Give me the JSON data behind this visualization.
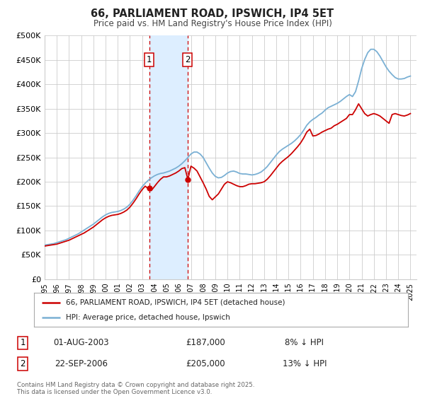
{
  "title": "66, PARLIAMENT ROAD, IPSWICH, IP4 5ET",
  "subtitle": "Price paid vs. HM Land Registry's House Price Index (HPI)",
  "ylim": [
    0,
    500000
  ],
  "yticks": [
    0,
    50000,
    100000,
    150000,
    200000,
    250000,
    300000,
    350000,
    400000,
    450000,
    500000
  ],
  "ytick_labels": [
    "£0",
    "£50K",
    "£100K",
    "£150K",
    "£200K",
    "£250K",
    "£300K",
    "£350K",
    "£400K",
    "£450K",
    "£500K"
  ],
  "sale1_date": 2003.58,
  "sale1_price": 187000,
  "sale1_label": "1",
  "sale2_date": 2006.72,
  "sale2_price": 205000,
  "sale2_label": "2",
  "line_color_red": "#cc0000",
  "line_color_blue": "#7ab0d4",
  "shading_color": "#ddeeff",
  "grid_color": "#cccccc",
  "background_color": "#ffffff",
  "legend_label_red": "66, PARLIAMENT ROAD, IPSWICH, IP4 5ET (detached house)",
  "legend_label_blue": "HPI: Average price, detached house, Ipswich",
  "footnote": "Contains HM Land Registry data © Crown copyright and database right 2025.\nThis data is licensed under the Open Government Licence v3.0.",
  "hpi_x": [
    1995.0,
    1995.25,
    1995.5,
    1995.75,
    1996.0,
    1996.25,
    1996.5,
    1996.75,
    1997.0,
    1997.25,
    1997.5,
    1997.75,
    1998.0,
    1998.25,
    1998.5,
    1998.75,
    1999.0,
    1999.25,
    1999.5,
    1999.75,
    2000.0,
    2000.25,
    2000.5,
    2000.75,
    2001.0,
    2001.25,
    2001.5,
    2001.75,
    2002.0,
    2002.25,
    2002.5,
    2002.75,
    2003.0,
    2003.25,
    2003.5,
    2003.75,
    2004.0,
    2004.25,
    2004.5,
    2004.75,
    2005.0,
    2005.25,
    2005.5,
    2005.75,
    2006.0,
    2006.25,
    2006.5,
    2006.75,
    2007.0,
    2007.25,
    2007.5,
    2007.75,
    2008.0,
    2008.25,
    2008.5,
    2008.75,
    2009.0,
    2009.25,
    2009.5,
    2009.75,
    2010.0,
    2010.25,
    2010.5,
    2010.75,
    2011.0,
    2011.25,
    2011.5,
    2011.75,
    2012.0,
    2012.25,
    2012.5,
    2012.75,
    2013.0,
    2013.25,
    2013.5,
    2013.75,
    2014.0,
    2014.25,
    2014.5,
    2014.75,
    2015.0,
    2015.25,
    2015.5,
    2015.75,
    2016.0,
    2016.25,
    2016.5,
    2016.75,
    2017.0,
    2017.25,
    2017.5,
    2017.75,
    2018.0,
    2018.25,
    2018.5,
    2018.75,
    2019.0,
    2019.25,
    2019.5,
    2019.75,
    2020.0,
    2020.25,
    2020.5,
    2020.75,
    2021.0,
    2021.25,
    2021.5,
    2021.75,
    2022.0,
    2022.25,
    2022.5,
    2022.75,
    2023.0,
    2023.25,
    2023.5,
    2023.75,
    2024.0,
    2024.25,
    2024.5,
    2024.75,
    2025.0
  ],
  "hpi_y": [
    70000,
    71000,
    72000,
    73000,
    75000,
    77000,
    79000,
    81000,
    84000,
    87000,
    90000,
    93000,
    97000,
    101000,
    105000,
    109000,
    113000,
    118000,
    123000,
    128000,
    132000,
    135000,
    137000,
    138000,
    139000,
    141000,
    144000,
    148000,
    154000,
    162000,
    171000,
    181000,
    190000,
    197000,
    203000,
    208000,
    212000,
    215000,
    217000,
    218000,
    220000,
    222000,
    225000,
    228000,
    232000,
    237000,
    243000,
    250000,
    257000,
    261000,
    261000,
    257000,
    250000,
    239000,
    228000,
    218000,
    211000,
    208000,
    209000,
    213000,
    218000,
    221000,
    222000,
    220000,
    217000,
    216000,
    216000,
    215000,
    214000,
    215000,
    217000,
    220000,
    225000,
    231000,
    239000,
    247000,
    255000,
    262000,
    267000,
    271000,
    275000,
    279000,
    284000,
    290000,
    297000,
    306000,
    316000,
    323000,
    328000,
    332000,
    337000,
    341000,
    347000,
    352000,
    355000,
    358000,
    361000,
    365000,
    370000,
    375000,
    379000,
    375000,
    385000,
    407000,
    432000,
    451000,
    465000,
    472000,
    472000,
    467000,
    458000,
    447000,
    436000,
    427000,
    420000,
    414000,
    411000,
    411000,
    412000,
    415000,
    417000
  ],
  "red_x": [
    1995.0,
    1995.25,
    1995.5,
    1995.75,
    1996.0,
    1996.25,
    1996.5,
    1996.75,
    1997.0,
    1997.25,
    1997.5,
    1997.75,
    1998.0,
    1998.25,
    1998.5,
    1998.75,
    1999.0,
    1999.25,
    1999.5,
    1999.75,
    2000.0,
    2000.25,
    2000.5,
    2000.75,
    2001.0,
    2001.25,
    2001.5,
    2001.75,
    2002.0,
    2002.25,
    2002.5,
    2002.75,
    2003.0,
    2003.25,
    2003.5,
    2003.75,
    2004.0,
    2004.25,
    2004.5,
    2004.75,
    2005.0,
    2005.25,
    2005.5,
    2005.75,
    2006.0,
    2006.25,
    2006.5,
    2006.75,
    2007.0,
    2007.25,
    2007.5,
    2007.75,
    2008.0,
    2008.25,
    2008.5,
    2008.75,
    2009.0,
    2009.25,
    2009.5,
    2009.75,
    2010.0,
    2010.25,
    2010.5,
    2010.75,
    2011.0,
    2011.25,
    2011.5,
    2011.75,
    2012.0,
    2012.25,
    2012.5,
    2012.75,
    2013.0,
    2013.25,
    2013.5,
    2013.75,
    2014.0,
    2014.25,
    2014.5,
    2014.75,
    2015.0,
    2015.25,
    2015.5,
    2015.75,
    2016.0,
    2016.25,
    2016.5,
    2016.75,
    2017.0,
    2017.25,
    2017.5,
    2017.75,
    2018.0,
    2018.25,
    2018.5,
    2018.75,
    2019.0,
    2019.25,
    2019.5,
    2019.75,
    2020.0,
    2020.25,
    2020.5,
    2020.75,
    2021.0,
    2021.25,
    2021.5,
    2021.75,
    2022.0,
    2022.25,
    2022.5,
    2022.75,
    2023.0,
    2023.25,
    2023.5,
    2023.75,
    2024.0,
    2024.25,
    2024.5,
    2024.75,
    2025.0
  ],
  "red_y": [
    68000,
    69000,
    70000,
    71000,
    72000,
    74000,
    76000,
    78000,
    80000,
    83000,
    86000,
    89000,
    92000,
    95000,
    99000,
    103000,
    107000,
    112000,
    117000,
    122000,
    126000,
    129000,
    131000,
    132000,
    133000,
    135000,
    138000,
    142000,
    148000,
    156000,
    165000,
    175000,
    184000,
    191000,
    186000,
    182000,
    190000,
    198000,
    205000,
    210000,
    210000,
    212000,
    215000,
    218000,
    222000,
    227000,
    229000,
    205000,
    232000,
    228000,
    222000,
    210000,
    198000,
    185000,
    170000,
    163000,
    169000,
    175000,
    185000,
    195000,
    200000,
    198000,
    195000,
    192000,
    190000,
    190000,
    192000,
    195000,
    196000,
    196000,
    197000,
    198000,
    200000,
    205000,
    212000,
    220000,
    228000,
    236000,
    242000,
    247000,
    252000,
    258000,
    265000,
    272000,
    280000,
    290000,
    302000,
    308000,
    294000,
    295000,
    298000,
    302000,
    305000,
    308000,
    310000,
    315000,
    318000,
    322000,
    326000,
    330000,
    338000,
    338000,
    348000,
    360000,
    350000,
    340000,
    335000,
    338000,
    340000,
    338000,
    335000,
    330000,
    325000,
    320000,
    338000,
    340000,
    338000,
    336000,
    335000,
    337000,
    340000
  ]
}
